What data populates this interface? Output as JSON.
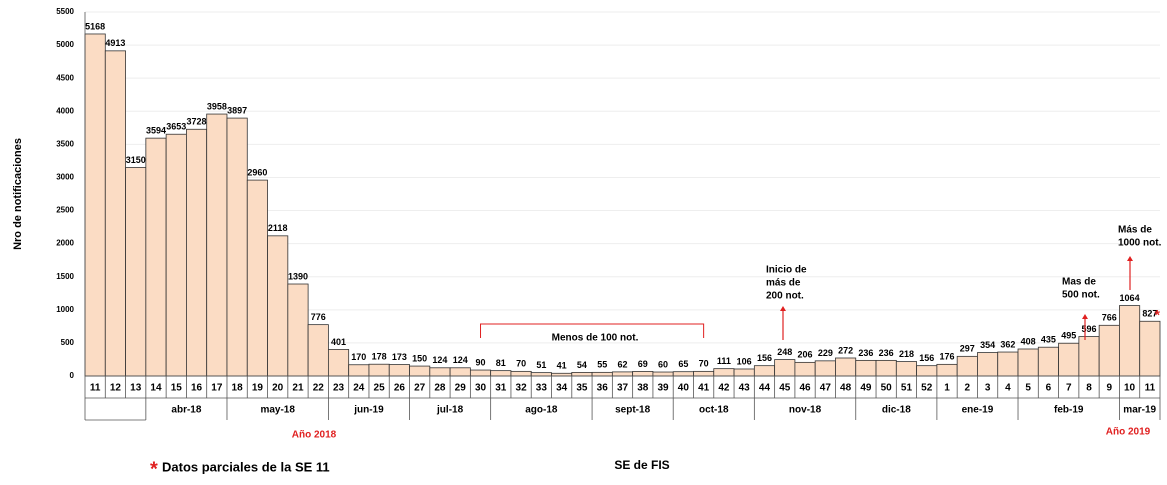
{
  "chart_data": {
    "type": "bar",
    "y_label": "Nro de notificaciones",
    "x_label": "SE de FIS",
    "categories": [
      "11",
      "12",
      "13",
      "14",
      "15",
      "16",
      "17",
      "18",
      "19",
      "20",
      "21",
      "22",
      "23",
      "24",
      "25",
      "26",
      "27",
      "28",
      "29",
      "30",
      "31",
      "32",
      "33",
      "34",
      "35",
      "36",
      "37",
      "38",
      "39",
      "40",
      "41",
      "42",
      "43",
      "44",
      "45",
      "46",
      "47",
      "48",
      "49",
      "50",
      "51",
      "52",
      "1",
      "2",
      "3",
      "4",
      "5",
      "6",
      "7",
      "8",
      "9",
      "10",
      "11"
    ],
    "values": [
      5168,
      4913,
      3150,
      3594,
      3653,
      3728,
      3958,
      3897,
      2960,
      2118,
      1390,
      776,
      401,
      170,
      178,
      173,
      150,
      124,
      124,
      90,
      81,
      70,
      51,
      41,
      54,
      55,
      62,
      69,
      60,
      65,
      70,
      111,
      106,
      156,
      248,
      206,
      229,
      272,
      236,
      236,
      218,
      156,
      176,
      297,
      354,
      362,
      408,
      435,
      495,
      596,
      766,
      1064,
      827
    ],
    "color": "#fbdcc4",
    "ylim": [
      0,
      5500
    ],
    "yticks": [
      0,
      500,
      1000,
      1500,
      2000,
      2500,
      3000,
      3500,
      4000,
      4500,
      5000,
      5500
    ],
    "months": [
      "abr-18",
      "may-18",
      "jun-19",
      "jul-18",
      "ago-18",
      "sept-18",
      "oct-18",
      "nov-18",
      "dic-18",
      "ene-19",
      "feb-19",
      "mar-19"
    ],
    "years": [
      "Año 2018",
      "Año 2019"
    ],
    "annotations": {
      "menos100": "Menos de 100 not.",
      "inicio200": [
        "Inicio de",
        "más de",
        "200 not."
      ],
      "mas500": [
        "Mas de",
        "500 not."
      ],
      "mas1000": [
        "Más de",
        "1000 not."
      ]
    },
    "asterisk": "*",
    "footnote": "Datos parciales de la SE 11"
  }
}
